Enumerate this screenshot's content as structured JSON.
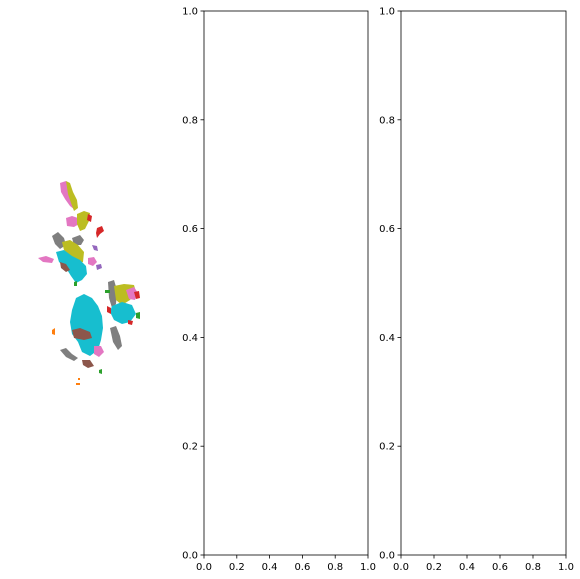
{
  "figure": {
    "panels": [
      "segmentation-map",
      "empty-axes-1",
      "empty-axes-2"
    ]
  },
  "segments": {
    "palette": {
      "pink": "#e377c2",
      "olive": "#bcbd22",
      "gray": "#7f7f7f",
      "cyan": "#17becf",
      "brown": "#8c564b",
      "red": "#d62728",
      "purple": "#9467bd",
      "green": "#2ca02c",
      "orange": "#ff7f0e"
    }
  },
  "chart_data": [
    {
      "type": "scatter",
      "xlim": [
        0.0,
        1.0
      ],
      "ylim": [
        0.0,
        1.0
      ],
      "x_ticks": [
        "0.0",
        "0.2",
        "0.4",
        "0.6",
        "0.8",
        "1.0"
      ],
      "y_ticks": [
        "0.0",
        "0.2",
        "0.4",
        "0.6",
        "0.8",
        "1.0"
      ],
      "series": [],
      "grid": false
    },
    {
      "type": "scatter",
      "xlim": [
        0.0,
        1.0
      ],
      "ylim": [
        0.0,
        1.0
      ],
      "x_ticks": [
        "0.0",
        "0.2",
        "0.4",
        "0.6",
        "0.8",
        "1.0"
      ],
      "y_ticks": [
        "0.0",
        "0.2",
        "0.4",
        "0.6",
        "0.8",
        "1.0"
      ],
      "series": [],
      "grid": false
    }
  ]
}
